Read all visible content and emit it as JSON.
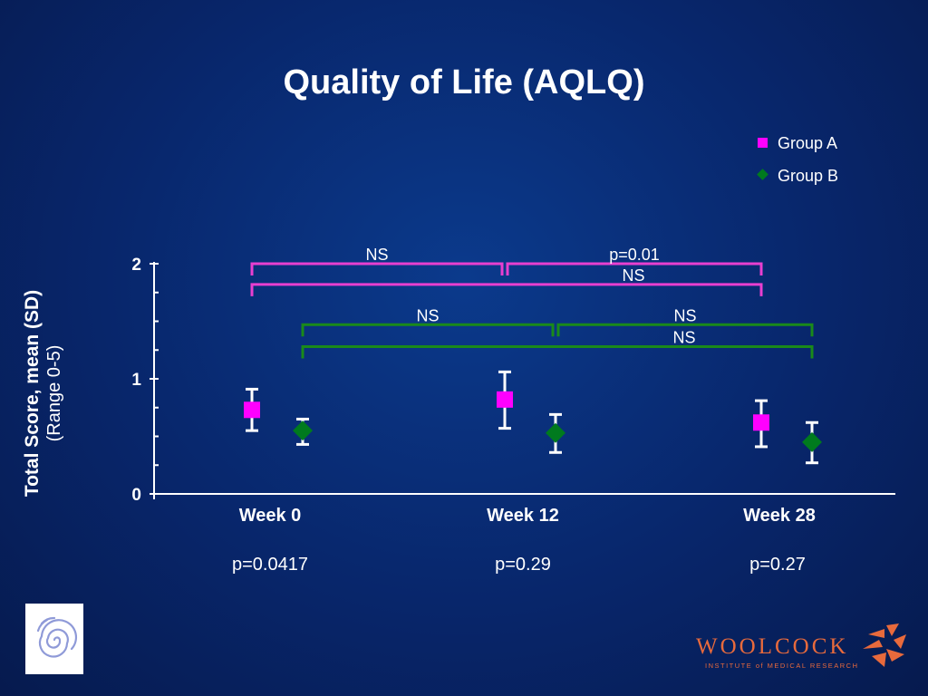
{
  "slide": {
    "title": "Quality of Life (AQLQ)"
  },
  "legend": {
    "group_a": "Group A",
    "group_b": "Group B"
  },
  "y_axis": {
    "label_line1": "Total Score, mean (SD)",
    "label_line2": "(Range 0-5)"
  },
  "colors": {
    "group_a": "#ff00ff",
    "group_b": "#007a1e",
    "bracket_a": "#e83fd0",
    "bracket_b": "#1a8a1a",
    "axis": "#ffffff",
    "logo_orange": "#e86a3c"
  },
  "p_values": [
    "p=0.0417",
    "p=0.29",
    "p=0.27"
  ],
  "chart_data": {
    "type": "scatter",
    "title": "Quality of Life (AQLQ)",
    "xlabel": "",
    "ylabel": "Total Score, mean (SD) (Range 0-5)",
    "categories": [
      "Week 0",
      "Week 12",
      "Week 28"
    ],
    "y_ticks": [
      0,
      1,
      2
    ],
    "ylim": [
      0,
      2
    ],
    "legend_position": "top-right",
    "series": [
      {
        "name": "Group A",
        "marker": "square",
        "values": [
          0.73,
          0.82,
          0.62
        ],
        "error_low": [
          0.55,
          0.57,
          0.41
        ],
        "error_high": [
          0.91,
          1.06,
          0.81
        ]
      },
      {
        "name": "Group B",
        "marker": "diamond",
        "values": [
          0.55,
          0.53,
          0.45
        ],
        "error_low": [
          0.43,
          0.36,
          0.27
        ],
        "error_high": [
          0.65,
          0.69,
          0.62
        ]
      }
    ],
    "annotations": [
      {
        "series": "Group A",
        "from": "Week 0",
        "to": "Week 12",
        "text": "NS",
        "y": 2.0
      },
      {
        "series": "Group A",
        "from": "Week 12",
        "to": "Week 28",
        "text": "p=0.01",
        "y": 2.0
      },
      {
        "series": "Group A",
        "from": "Week 0",
        "to": "Week 28",
        "text": "NS",
        "y": 1.82
      },
      {
        "series": "Group B",
        "from": "Week 0",
        "to": "Week 12",
        "text": "NS",
        "y": 1.47
      },
      {
        "series": "Group B",
        "from": "Week 12",
        "to": "Week 28",
        "text": "NS",
        "y": 1.47
      },
      {
        "series": "Group B",
        "from": "Week 0",
        "to": "Week 28",
        "text": "NS",
        "y": 1.28
      }
    ]
  },
  "logo": {
    "name": "WOOLCOCK",
    "subtitle": "INSTITUTE of MEDICAL RESEARCH"
  }
}
